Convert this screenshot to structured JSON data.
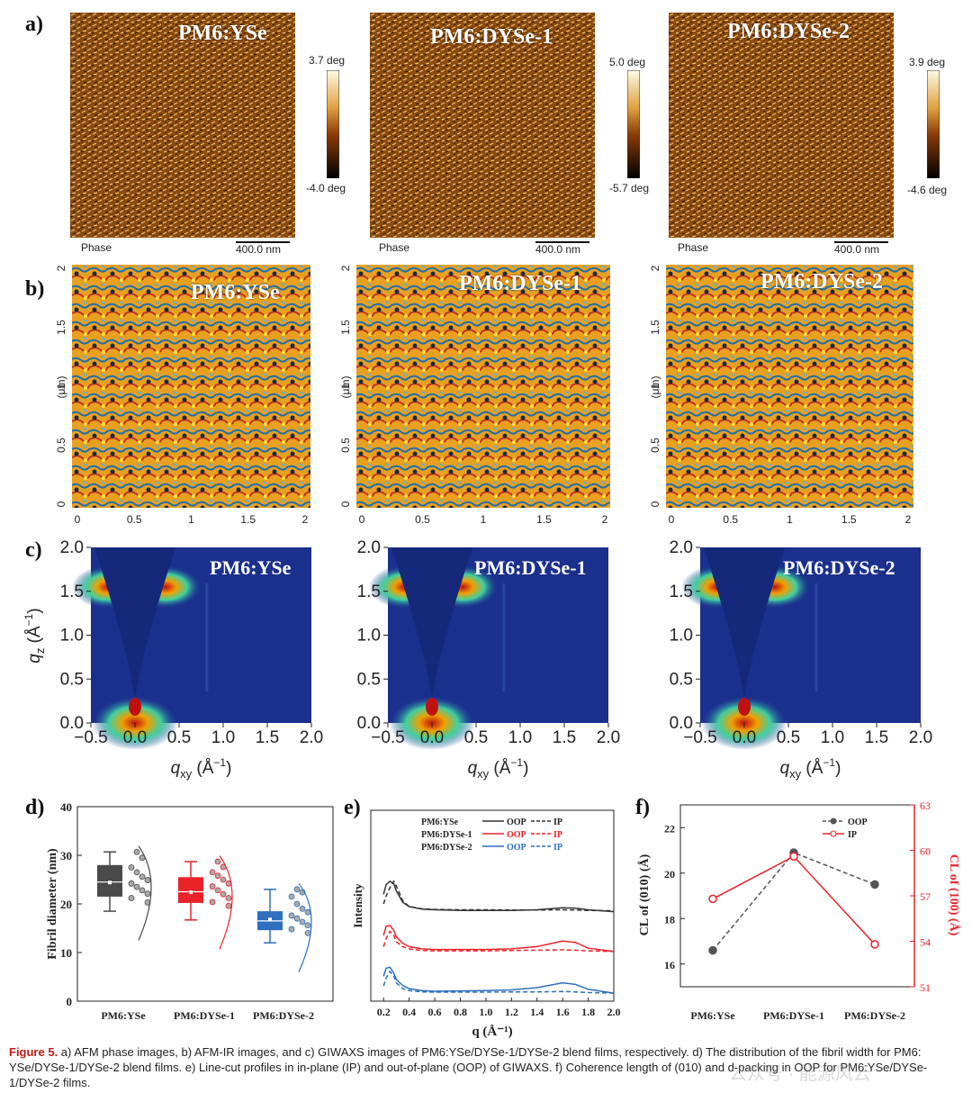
{
  "panel_a": {
    "letter": "a)",
    "tiles": [
      {
        "title": "PM6:YSe",
        "cbar_max": "3.7 deg",
        "cbar_min": "-4.0 deg",
        "phase_label": "Phase",
        "scale_label": "400.0 nm"
      },
      {
        "title": "PM6:DYSe-1",
        "cbar_max": "5.0 deg",
        "cbar_min": "-5.7 deg",
        "phase_label": "Phase",
        "scale_label": "400.0 nm"
      },
      {
        "title": "PM6:DYSe-2",
        "cbar_max": "3.9 deg",
        "cbar_min": "-4.6 deg",
        "phase_label": "Phase",
        "scale_label": "400.0 nm"
      }
    ]
  },
  "panel_b": {
    "letter": "b)",
    "ylabel": "(μm)",
    "tiles": [
      {
        "title": "PM6:YSe"
      },
      {
        "title": "PM6:DYSe-1"
      },
      {
        "title": "PM6:DYSe-2"
      }
    ],
    "ticks": [
      "0",
      "0.5",
      "1",
      "1.5",
      "2"
    ]
  },
  "panel_c": {
    "letter": "c)",
    "tiles": [
      {
        "title": "PM6:YSe"
      },
      {
        "title": "PM6:DYSe-1"
      },
      {
        "title": "PM6:DYSe-2"
      }
    ],
    "xticks": [
      "−0.5",
      "0.0",
      "0.5",
      "1.0",
      "1.5",
      "2.0"
    ],
    "yticks": [
      "0.0",
      "0.5",
      "1.0",
      "1.5",
      "2.0"
    ],
    "xlabel_main": "q",
    "xlabel_sub": "xy",
    "xlabel_unit": "(Å",
    "xlabel_exp": "−1",
    "ylabel_main": "q",
    "ylabel_sub": "z",
    "ylabel_unit": "(Å",
    "ylabel_exp": "−1",
    "close_paren": ")"
  },
  "chart_data": [
    {
      "type": "box",
      "panel": "d)",
      "title": "",
      "ylabel": "Fibril diameter (nm)",
      "ylim": [
        0,
        40
      ],
      "yticks": [
        "0",
        "10",
        "20",
        "30",
        "40"
      ],
      "categories": [
        "PM6:YSe",
        "PM6:DYSe-1",
        "PM6:DYSe-2"
      ],
      "colors": [
        "#4a4a4a",
        "#e8232a",
        "#2e6fbf"
      ],
      "boxes": [
        {
          "min": 18.5,
          "q1": 21.5,
          "median": 24.5,
          "mean": 24.4,
          "q3": 28,
          "max": 30.7
        },
        {
          "min": 16.7,
          "q1": 20.2,
          "median": 22.5,
          "mean": 22.4,
          "q3": 25.5,
          "max": 28.7
        },
        {
          "min": 12,
          "q1": 14.6,
          "median": 16.5,
          "mean": 16.8,
          "q3": 18.5,
          "max": 23
        }
      ],
      "points": [
        [
          27.5,
          26.5,
          25.6,
          24.9,
          24.2,
          23.5,
          22.8,
          22.1,
          21.2,
          30.7,
          29.5,
          20.3
        ],
        [
          26.5,
          25.8,
          25.0,
          24.2,
          23.6,
          22.8,
          22.0,
          21.2,
          20.4,
          28.7,
          27.6,
          19.6
        ],
        [
          21.5,
          20.0,
          19.0,
          18.3,
          17.6,
          17.0,
          16.3,
          15.6,
          14.8,
          23.0,
          22.4,
          14.0
        ]
      ]
    },
    {
      "type": "line",
      "panel": "e)",
      "xlabel": "q (Å⁻¹)",
      "ylabel": "Intensity",
      "xlim": [
        0.1,
        2.0
      ],
      "xticks": [
        "0.2",
        "0.4",
        "0.6",
        "0.8",
        "1.0",
        "1.2",
        "1.4",
        "1.6",
        "1.8",
        "2.0"
      ],
      "legend": [
        {
          "name": "PM6:YSe",
          "color": "#333333",
          "oop": "OOP",
          "ip": "IP"
        },
        {
          "name": "PM6:DYSe-1",
          "color": "#e8232a",
          "oop": "OOP",
          "ip": "IP"
        },
        {
          "name": "PM6:DYSe-2",
          "color": "#2e6fbf",
          "oop": "OOP",
          "ip": "IP"
        }
      ],
      "series": [
        {
          "name": "PM6:YSe OOP",
          "offset": 2.0,
          "x": [
            0.2,
            0.22,
            0.25,
            0.28,
            0.3,
            0.35,
            0.4,
            0.5,
            0.6,
            0.8,
            1.0,
            1.2,
            1.4,
            1.6,
            1.7,
            1.8,
            2.0
          ],
          "y": [
            0.6,
            0.9,
            1.0,
            0.92,
            0.7,
            0.35,
            0.22,
            0.14,
            0.12,
            0.1,
            0.1,
            0.1,
            0.12,
            0.18,
            0.17,
            0.12,
            0.06
          ]
        },
        {
          "name": "PM6:YSe IP",
          "offset": 2.0,
          "x": [
            0.2,
            0.22,
            0.25,
            0.28,
            0.3,
            0.35,
            0.4,
            0.5,
            0.6,
            0.8,
            1.0,
            1.2,
            1.4,
            1.6,
            1.7,
            1.8,
            2.0
          ],
          "y": [
            0.3,
            0.55,
            0.8,
            1.0,
            0.85,
            0.4,
            0.22,
            0.15,
            0.13,
            0.12,
            0.12,
            0.11,
            0.11,
            0.12,
            0.11,
            0.1,
            0.09
          ]
        },
        {
          "name": "PM6:DYSe-1 OOP",
          "offset": 1.0,
          "x": [
            0.2,
            0.22,
            0.25,
            0.28,
            0.3,
            0.35,
            0.4,
            0.5,
            0.6,
            0.8,
            1.0,
            1.2,
            1.4,
            1.6,
            1.7,
            1.8,
            2.0
          ],
          "y": [
            0.6,
            0.88,
            0.9,
            0.75,
            0.55,
            0.35,
            0.25,
            0.18,
            0.16,
            0.16,
            0.16,
            0.18,
            0.25,
            0.42,
            0.38,
            0.2,
            0.1
          ]
        },
        {
          "name": "PM6:DYSe-1 IP",
          "offset": 1.0,
          "x": [
            0.2,
            0.22,
            0.25,
            0.28,
            0.3,
            0.35,
            0.4,
            0.5,
            0.6,
            0.8,
            1.0,
            1.2,
            1.4,
            1.6,
            1.7,
            1.8,
            2.0
          ],
          "y": [
            0.25,
            0.5,
            0.72,
            0.6,
            0.4,
            0.25,
            0.18,
            0.13,
            0.12,
            0.12,
            0.12,
            0.13,
            0.14,
            0.15,
            0.14,
            0.12,
            0.1
          ]
        },
        {
          "name": "PM6:DYSe-2 OOP",
          "offset": 0.0,
          "x": [
            0.2,
            0.22,
            0.25,
            0.28,
            0.3,
            0.35,
            0.4,
            0.5,
            0.6,
            0.8,
            1.0,
            1.2,
            1.4,
            1.6,
            1.7,
            1.8,
            2.0
          ],
          "y": [
            0.6,
            0.85,
            0.88,
            0.7,
            0.5,
            0.32,
            0.22,
            0.16,
            0.14,
            0.15,
            0.16,
            0.18,
            0.25,
            0.4,
            0.35,
            0.2,
            0.08
          ]
        },
        {
          "name": "PM6:DYSe-2 IP",
          "offset": 0.0,
          "x": [
            0.2,
            0.22,
            0.25,
            0.28,
            0.3,
            0.35,
            0.4,
            0.5,
            0.6,
            0.8,
            1.0,
            1.2,
            1.4,
            1.6,
            1.7,
            1.8,
            2.0
          ],
          "y": [
            0.3,
            0.55,
            0.75,
            0.6,
            0.4,
            0.22,
            0.16,
            0.12,
            0.11,
            0.11,
            0.11,
            0.12,
            0.12,
            0.13,
            0.12,
            0.1,
            0.08
          ]
        }
      ]
    },
    {
      "type": "line",
      "panel": "f)",
      "categories": [
        "PM6:YSe",
        "PM6:DYSe-1",
        "PM6:DYSe-2"
      ],
      "ylabel_left": "CL of (010) (Å)",
      "ylabel_right": "CL of (100) (Å)",
      "ylim_left": [
        15,
        23
      ],
      "ylim_right": [
        51,
        63
      ],
      "yticks_left": [
        "16",
        "18",
        "20",
        "22"
      ],
      "yticks_right": [
        "51",
        "54",
        "57",
        "60",
        "63"
      ],
      "series": [
        {
          "name": "OOP",
          "axis": "left",
          "color": "#555555",
          "values": [
            16.6,
            20.9,
            19.5
          ]
        },
        {
          "name": "IP",
          "axis": "right",
          "color": "#e8232a",
          "values": [
            56.8,
            59.6,
            53.8
          ]
        }
      ]
    }
  ],
  "caption": {
    "label": "Figure 5.",
    "text": " a) AFM phase images, b) AFM-IR images, and c) GIWAXS images of PM6:YSe/DYSe-1/DYSe-2 blend films, respectively. d) The distribution of the fibril width for PM6: YSe/DYSe-1/DYSe-2 blend films. e) Line-cut profiles in in-plane (IP) and out-of-plane (OOP) of GIWAXS. f) Coherence length of (010) and d-packing in OOP for PM6:YSe/DYSe-1/DYSe-2 films."
  },
  "watermark": {
    "text": "公众号 · 能源风云"
  }
}
